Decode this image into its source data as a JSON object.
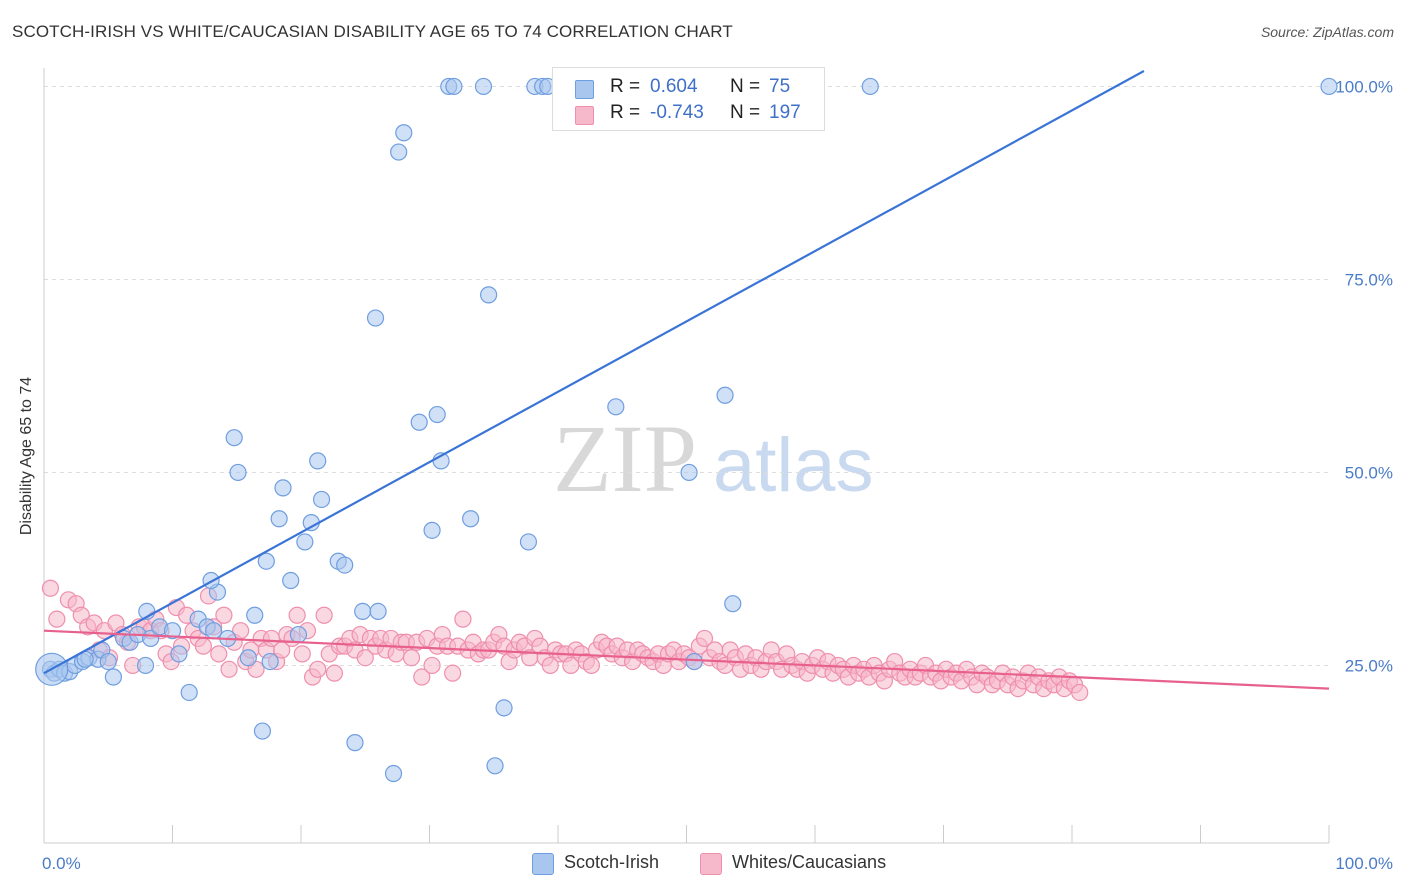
{
  "title": "SCOTCH-IRISH VS WHITE/CAUCASIAN DISABILITY AGE 65 TO 74 CORRELATION CHART",
  "source": "Source: ZipAtlas.com",
  "watermark": {
    "zip": "ZIP",
    "atlas": "atlas"
  },
  "colors": {
    "blue_fill": "#a9c6ef",
    "blue_stroke": "#6f9ee0",
    "blue_line": "#3a74d6",
    "pink_fill": "#f6b8cb",
    "pink_stroke": "#ef8fae",
    "pink_line": "#e8608d",
    "tick_text": "#4a7cc8",
    "grid": "#dddddd"
  },
  "legend": {
    "rows": [
      {
        "r_label": "R =",
        "r_value": "0.604",
        "n_label": "N =",
        "n_value": "75"
      },
      {
        "r_label": "R =",
        "r_value": "-0.743",
        "n_label": "N =",
        "n_value": "197"
      }
    ]
  },
  "bottom_legend": [
    "Scotch-Irish",
    "Whites/Caucasians"
  ],
  "chart_data": {
    "type": "scatter",
    "title": "SCOTCH-IRISH VS WHITE/CAUCASIAN DISABILITY AGE 65 TO 74 CORRELATION CHART",
    "xlabel": "",
    "ylabel": "Disability Age 65 to 74",
    "xlim": [
      0,
      100
    ],
    "ylim": [
      2,
      102
    ],
    "x_tick_labels": [
      "0.0%",
      "100.0%"
    ],
    "y_ticks": [
      25,
      50,
      75,
      100
    ],
    "y_tick_labels": [
      "25.0%",
      "50.0%",
      "75.0%",
      "100.0%"
    ],
    "grid": true,
    "series": [
      {
        "name": "Scotch-Irish",
        "color": "#a9c6ef",
        "r": 0.604,
        "n": 75,
        "trend": {
          "x": [
            0,
            85.6
          ],
          "y": [
            24.0,
            102.0
          ]
        },
        "points": [
          [
            0.5,
            24.5
          ],
          [
            0.8,
            24.0
          ],
          [
            1.2,
            24.5
          ],
          [
            1.6,
            24.0
          ],
          [
            2.0,
            24.2
          ],
          [
            2.4,
            25.0
          ],
          [
            3.0,
            25.5
          ],
          [
            3.5,
            26.0
          ],
          [
            4.2,
            25.8
          ],
          [
            4.5,
            27.0
          ],
          [
            5.0,
            25.5
          ],
          [
            5.4,
            23.5
          ],
          [
            6.2,
            28.5
          ],
          [
            6.7,
            28.0
          ],
          [
            7.3,
            29.0
          ],
          [
            7.9,
            25.0
          ],
          [
            8.3,
            28.5
          ],
          [
            9.0,
            30.0
          ],
          [
            8.0,
            32.0
          ],
          [
            10.0,
            29.5
          ],
          [
            10.5,
            26.5
          ],
          [
            11.3,
            21.5
          ],
          [
            12.0,
            31.0
          ],
          [
            12.7,
            30.0
          ],
          [
            13.2,
            29.5
          ],
          [
            13.5,
            34.5
          ],
          [
            14.3,
            28.5
          ],
          [
            14.8,
            54.5
          ],
          [
            15.1,
            50.0
          ],
          [
            15.9,
            26.0
          ],
          [
            16.4,
            31.5
          ],
          [
            17.0,
            16.5
          ],
          [
            17.3,
            38.5
          ],
          [
            17.6,
            25.5
          ],
          [
            18.3,
            44.0
          ],
          [
            18.6,
            48.0
          ],
          [
            19.2,
            36.0
          ],
          [
            19.8,
            29.0
          ],
          [
            20.3,
            41.0
          ],
          [
            20.8,
            43.5
          ],
          [
            21.3,
            51.5
          ],
          [
            21.6,
            46.5
          ],
          [
            22.9,
            38.5
          ],
          [
            23.4,
            38.0
          ],
          [
            24.2,
            15.0
          ],
          [
            24.8,
            32.0
          ],
          [
            25.8,
            70.0
          ],
          [
            26.0,
            32.0
          ],
          [
            27.2,
            11.0
          ],
          [
            27.6,
            91.5
          ],
          [
            28.0,
            94.0
          ],
          [
            29.2,
            56.5
          ],
          [
            30.2,
            42.5
          ],
          [
            30.6,
            57.5
          ],
          [
            30.9,
            51.5
          ],
          [
            31.5,
            100.0
          ],
          [
            31.9,
            100.0
          ],
          [
            33.2,
            44.0
          ],
          [
            34.2,
            100.0
          ],
          [
            34.6,
            73.0
          ],
          [
            35.8,
            19.5
          ],
          [
            35.1,
            12.0
          ],
          [
            37.7,
            41.0
          ],
          [
            38.2,
            100.0
          ],
          [
            38.8,
            100.0
          ],
          [
            39.2,
            100.0
          ],
          [
            44.5,
            58.5
          ],
          [
            50.2,
            50.0
          ],
          [
            50.6,
            25.5
          ],
          [
            53.0,
            60.0
          ],
          [
            53.6,
            33.0
          ],
          [
            64.3,
            100.0
          ],
          [
            100.0,
            100.0
          ],
          [
            13.0,
            36.0
          ],
          [
            3.2,
            25.8
          ]
        ]
      },
      {
        "name": "Whites/Caucasians",
        "color": "#f6b8cb",
        "r": -0.743,
        "n": 197,
        "trend": {
          "x": [
            0,
            100
          ],
          "y": [
            29.5,
            22.0
          ]
        },
        "points": [
          [
            0.5,
            35.0
          ],
          [
            1.0,
            31.0
          ],
          [
            1.9,
            33.5
          ],
          [
            2.5,
            33.0
          ],
          [
            2.9,
            31.5
          ],
          [
            3.4,
            30.0
          ],
          [
            3.9,
            30.5
          ],
          [
            4.3,
            27.0
          ],
          [
            4.7,
            29.5
          ],
          [
            5.1,
            26.0
          ],
          [
            5.6,
            30.5
          ],
          [
            6.1,
            29.0
          ],
          [
            6.5,
            28.0
          ],
          [
            6.9,
            25.0
          ],
          [
            7.4,
            30.0
          ],
          [
            7.8,
            30.0
          ],
          [
            8.3,
            29.5
          ],
          [
            8.7,
            31.0
          ],
          [
            9.1,
            29.5
          ],
          [
            9.5,
            26.5
          ],
          [
            9.9,
            25.5
          ],
          [
            10.3,
            32.5
          ],
          [
            10.7,
            27.5
          ],
          [
            11.1,
            31.5
          ],
          [
            11.6,
            29.5
          ],
          [
            12.0,
            28.5
          ],
          [
            12.4,
            27.5
          ],
          [
            12.8,
            34.0
          ],
          [
            13.2,
            30.0
          ],
          [
            13.6,
            26.5
          ],
          [
            14.0,
            31.5
          ],
          [
            14.4,
            24.5
          ],
          [
            14.8,
            28.0
          ],
          [
            15.3,
            29.5
          ],
          [
            15.7,
            25.5
          ],
          [
            16.1,
            27.0
          ],
          [
            16.5,
            24.5
          ],
          [
            16.9,
            28.5
          ],
          [
            17.3,
            27.0
          ],
          [
            17.7,
            28.5
          ],
          [
            18.1,
            25.5
          ],
          [
            18.5,
            27.0
          ],
          [
            18.9,
            29.0
          ],
          [
            19.3,
            28.5
          ],
          [
            19.7,
            31.5
          ],
          [
            20.1,
            26.5
          ],
          [
            20.5,
            29.5
          ],
          [
            20.9,
            23.5
          ],
          [
            21.3,
            24.5
          ],
          [
            21.8,
            31.5
          ],
          [
            22.2,
            26.5
          ],
          [
            22.6,
            24.0
          ],
          [
            23.0,
            27.5
          ],
          [
            23.4,
            27.5
          ],
          [
            23.8,
            28.5
          ],
          [
            24.2,
            27.0
          ],
          [
            24.6,
            29.0
          ],
          [
            25.0,
            26.0
          ],
          [
            25.4,
            28.5
          ],
          [
            25.8,
            27.5
          ],
          [
            26.2,
            28.5
          ],
          [
            26.6,
            27.0
          ],
          [
            27.0,
            28.5
          ],
          [
            27.4,
            26.5
          ],
          [
            27.8,
            28.0
          ],
          [
            28.2,
            28.0
          ],
          [
            28.6,
            26.0
          ],
          [
            29.0,
            28.0
          ],
          [
            29.4,
            23.5
          ],
          [
            29.8,
            28.5
          ],
          [
            30.2,
            25.0
          ],
          [
            30.6,
            27.5
          ],
          [
            31.0,
            29.0
          ],
          [
            31.4,
            27.5
          ],
          [
            31.8,
            24.0
          ],
          [
            32.2,
            27.5
          ],
          [
            32.6,
            31.0
          ],
          [
            33.0,
            27.0
          ],
          [
            33.4,
            28.0
          ],
          [
            33.8,
            26.5
          ],
          [
            34.2,
            27.0
          ],
          [
            34.6,
            27.0
          ],
          [
            35.0,
            28.0
          ],
          [
            35.4,
            29.0
          ],
          [
            35.8,
            27.5
          ],
          [
            36.2,
            25.5
          ],
          [
            36.6,
            27.0
          ],
          [
            37.0,
            28.0
          ],
          [
            37.4,
            27.5
          ],
          [
            37.8,
            26.0
          ],
          [
            38.2,
            28.5
          ],
          [
            38.6,
            27.5
          ],
          [
            39.0,
            26.0
          ],
          [
            39.4,
            25.0
          ],
          [
            39.8,
            27.0
          ],
          [
            40.2,
            26.5
          ],
          [
            40.6,
            26.5
          ],
          [
            41.0,
            25.0
          ],
          [
            41.4,
            27.0
          ],
          [
            41.8,
            26.5
          ],
          [
            42.2,
            25.5
          ],
          [
            42.6,
            25.0
          ],
          [
            43.0,
            27.0
          ],
          [
            43.4,
            28.0
          ],
          [
            43.8,
            27.5
          ],
          [
            44.2,
            26.5
          ],
          [
            44.6,
            27.5
          ],
          [
            45.0,
            26.0
          ],
          [
            45.4,
            27.0
          ],
          [
            45.8,
            25.5
          ],
          [
            46.2,
            27.0
          ],
          [
            46.6,
            26.5
          ],
          [
            47.0,
            26.0
          ],
          [
            47.4,
            25.5
          ],
          [
            47.8,
            26.5
          ],
          [
            48.2,
            25.0
          ],
          [
            48.6,
            26.5
          ],
          [
            49.0,
            27.0
          ],
          [
            49.4,
            25.5
          ],
          [
            49.8,
            26.5
          ],
          [
            50.2,
            26.0
          ],
          [
            50.6,
            25.5
          ],
          [
            51.0,
            27.5
          ],
          [
            51.4,
            28.5
          ],
          [
            51.8,
            26.0
          ],
          [
            52.2,
            27.0
          ],
          [
            52.6,
            25.5
          ],
          [
            53.0,
            25.0
          ],
          [
            53.4,
            27.0
          ],
          [
            53.8,
            26.0
          ],
          [
            54.2,
            24.5
          ],
          [
            54.6,
            26.5
          ],
          [
            55.0,
            25.0
          ],
          [
            55.4,
            26.0
          ],
          [
            55.8,
            24.5
          ],
          [
            56.2,
            25.5
          ],
          [
            56.6,
            27.0
          ],
          [
            57.0,
            25.5
          ],
          [
            57.4,
            24.5
          ],
          [
            57.8,
            26.5
          ],
          [
            58.2,
            25.0
          ],
          [
            58.6,
            24.5
          ],
          [
            59.0,
            25.5
          ],
          [
            59.4,
            24.0
          ],
          [
            59.8,
            25.0
          ],
          [
            60.2,
            26.0
          ],
          [
            60.6,
            24.5
          ],
          [
            61.0,
            25.5
          ],
          [
            61.4,
            24.0
          ],
          [
            61.8,
            25.0
          ],
          [
            62.2,
            24.5
          ],
          [
            62.6,
            23.5
          ],
          [
            63.0,
            25.0
          ],
          [
            63.4,
            24.0
          ],
          [
            63.8,
            24.5
          ],
          [
            64.2,
            23.5
          ],
          [
            64.6,
            25.0
          ],
          [
            65.0,
            24.0
          ],
          [
            65.4,
            23.0
          ],
          [
            65.8,
            24.5
          ],
          [
            66.2,
            25.5
          ],
          [
            66.6,
            24.0
          ],
          [
            67.0,
            23.5
          ],
          [
            67.4,
            24.5
          ],
          [
            67.8,
            23.5
          ],
          [
            68.2,
            24.0
          ],
          [
            68.6,
            25.0
          ],
          [
            69.0,
            23.5
          ],
          [
            69.4,
            24.0
          ],
          [
            69.8,
            23.0
          ],
          [
            70.2,
            24.5
          ],
          [
            70.6,
            23.5
          ],
          [
            71.0,
            24.0
          ],
          [
            71.4,
            23.0
          ],
          [
            71.8,
            24.5
          ],
          [
            72.2,
            23.5
          ],
          [
            72.6,
            22.5
          ],
          [
            73.0,
            24.0
          ],
          [
            73.4,
            23.5
          ],
          [
            73.8,
            22.5
          ],
          [
            74.2,
            23.0
          ],
          [
            74.6,
            24.0
          ],
          [
            75.0,
            22.5
          ],
          [
            75.4,
            23.5
          ],
          [
            75.8,
            22.0
          ],
          [
            76.2,
            23.0
          ],
          [
            76.6,
            24.0
          ],
          [
            77.0,
            22.5
          ],
          [
            77.4,
            23.5
          ],
          [
            77.8,
            22.0
          ],
          [
            78.2,
            23.0
          ],
          [
            78.6,
            22.5
          ],
          [
            79.0,
            23.5
          ],
          [
            79.4,
            22.0
          ],
          [
            79.8,
            23.0
          ],
          [
            80.2,
            22.5
          ],
          [
            80.6,
            21.5
          ]
        ]
      }
    ]
  }
}
